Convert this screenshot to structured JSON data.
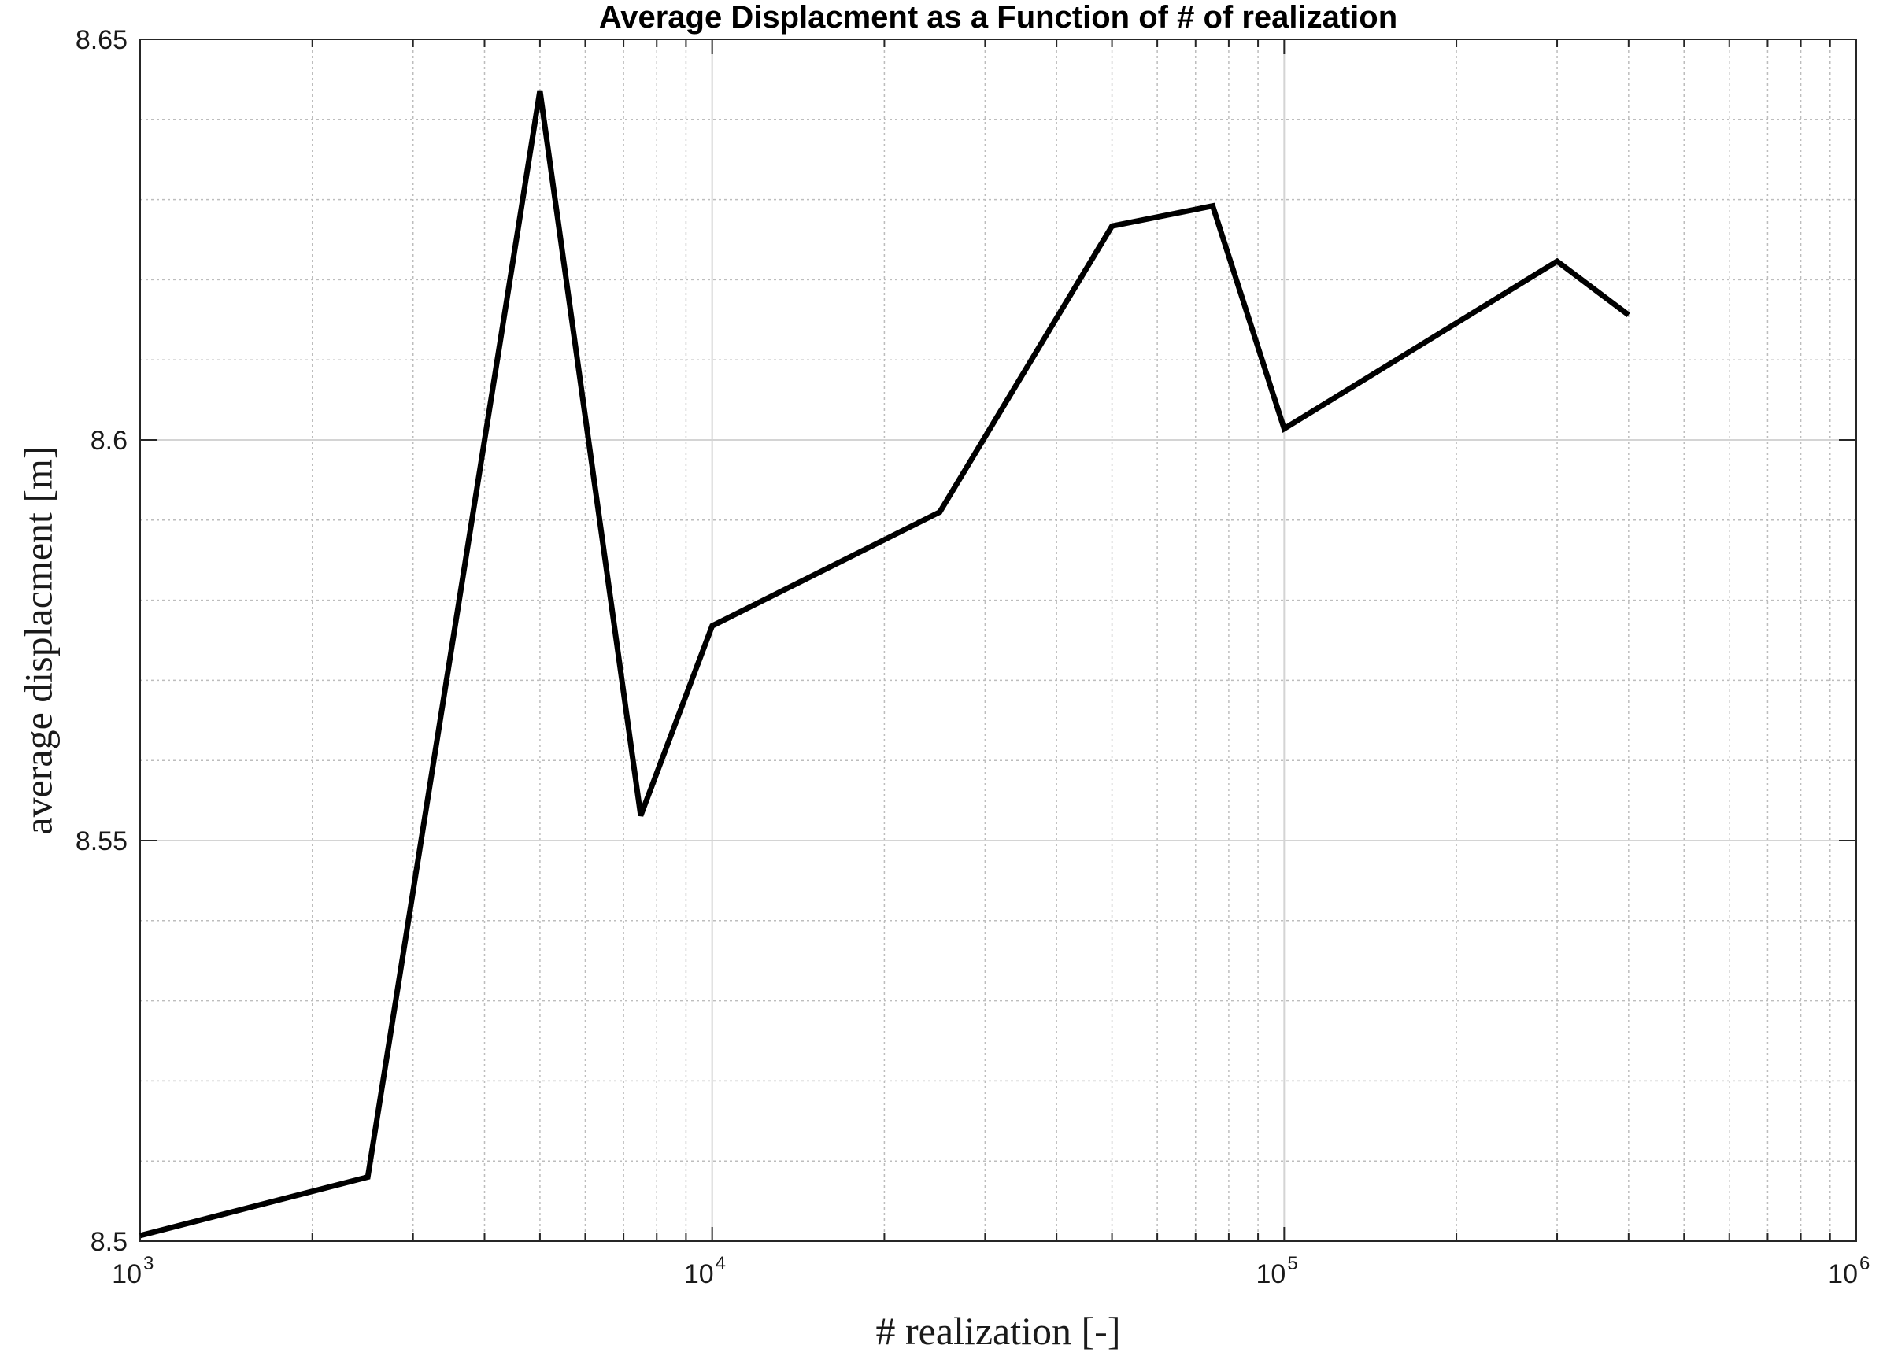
{
  "chart_data": {
    "type": "line",
    "title": "Average Displacment as a Function of # of realization",
    "xlabel": "# realization [-]",
    "ylabel": "average displacment [m]",
    "x_scale": "log",
    "xlim": [
      1000,
      1000000
    ],
    "ylim": [
      8.5,
      8.65
    ],
    "grid": true,
    "minor_grid": true,
    "x_ticks": [
      {
        "base": "10",
        "exp": "3",
        "value": 1000
      },
      {
        "base": "10",
        "exp": "4",
        "value": 10000
      },
      {
        "base": "10",
        "exp": "5",
        "value": 100000
      },
      {
        "base": "10",
        "exp": "6",
        "value": 1000000
      }
    ],
    "y_ticks": [
      {
        "label": "8.5",
        "value": 8.5
      },
      {
        "label": "8.55",
        "value": 8.55
      },
      {
        "label": "8.6",
        "value": 8.6
      },
      {
        "label": "8.65",
        "value": 8.65
      }
    ],
    "line_color": "#000000",
    "series": [
      {
        "x": [
          1000,
          2500,
          5000,
          7500,
          10000,
          25000,
          50000,
          75000,
          100000,
          300000,
          400000
        ],
        "y": [
          8.5007,
          8.508,
          8.6436,
          8.5531,
          8.5768,
          8.591,
          8.6267,
          8.6292,
          8.6014,
          8.6223,
          8.6156
        ]
      }
    ]
  }
}
